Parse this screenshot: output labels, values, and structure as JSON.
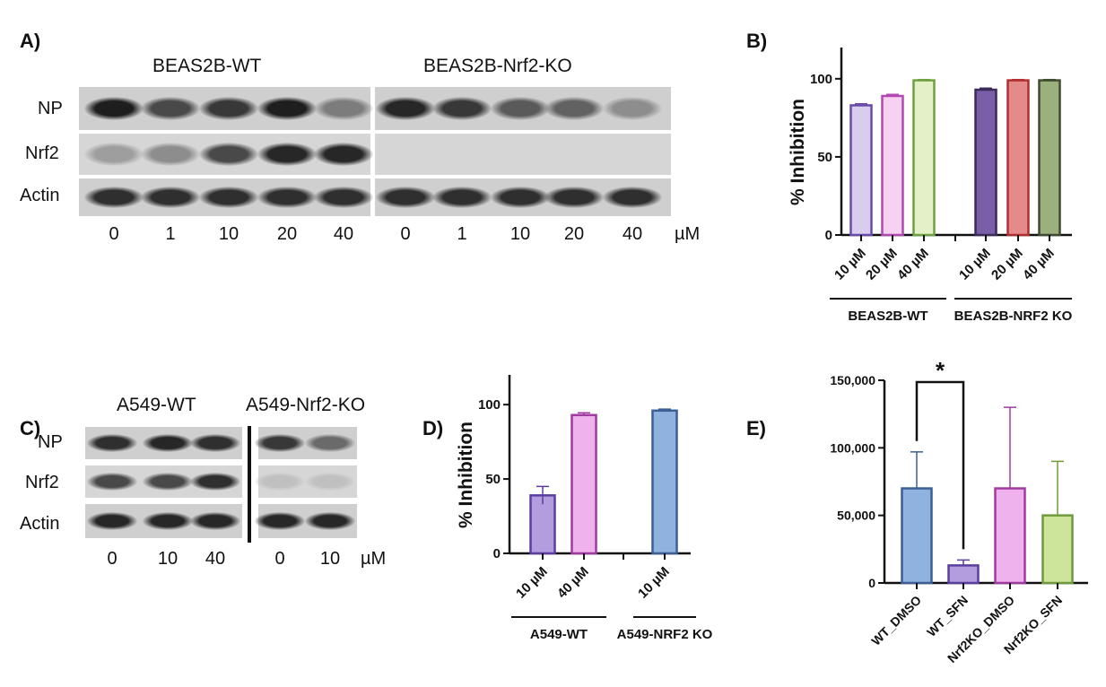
{
  "panels": {
    "a": "A)",
    "b": "B)",
    "c": "C)",
    "d": "D)",
    "e": "E)"
  },
  "blot_a": {
    "groups": [
      "BEAS2B-WT",
      "BEAS2B-Nrf2-KO"
    ],
    "rows": [
      "NP",
      "Nrf2",
      "Actin"
    ],
    "lanes": [
      "0",
      "1",
      "10",
      "20",
      "40",
      "0",
      "1",
      "10",
      "20",
      "40"
    ],
    "unit": "µM",
    "intensity": {
      "NP": [
        1.0,
        0.75,
        0.85,
        1.0,
        0.45,
        0.95,
        0.85,
        0.65,
        0.6,
        0.35
      ],
      "Nrf2": [
        0.25,
        0.35,
        0.75,
        0.95,
        0.95,
        0,
        0,
        0,
        0,
        0
      ],
      "Actin": [
        0.9,
        0.9,
        0.9,
        0.9,
        0.9,
        0.9,
        0.9,
        0.9,
        0.9,
        0.9
      ]
    }
  },
  "blot_c": {
    "groups": [
      "A549-WT",
      "A549-Nrf2-KO"
    ],
    "rows": [
      "NP",
      "Nrf2",
      "Actin"
    ],
    "lanes": [
      "0",
      "10",
      "40",
      "0",
      "10"
    ],
    "unit": "µM",
    "intensity": {
      "NP": [
        0.9,
        0.95,
        0.9,
        0.85,
        0.55
      ],
      "Nrf2": [
        0.75,
        0.75,
        0.9,
        0.05,
        0.05
      ],
      "Actin": [
        0.95,
        0.95,
        0.95,
        0.95,
        0.95
      ]
    }
  },
  "chart_data": [
    {
      "id": "B",
      "type": "bar",
      "ylabel": "% Inhibition",
      "ylim": [
        0,
        120
      ],
      "yticks": [
        "0",
        "50",
        "100"
      ],
      "ytick_values": [
        0,
        50,
        100
      ],
      "categories": [
        "10 µM",
        "20 µM",
        "40 µM",
        "10 µM",
        "20 µM",
        "40 µM"
      ],
      "values": [
        83,
        89,
        99,
        93,
        99,
        99
      ],
      "errors": [
        1,
        1,
        0.5,
        1,
        0.5,
        0.5
      ],
      "groups": [
        {
          "label": "BEAS2B-WT",
          "members": [
            0,
            1,
            2
          ]
        },
        {
          "label": "BEAS2B-NRF2 KO",
          "members": [
            3,
            4,
            5
          ]
        }
      ],
      "fills": [
        "#d9cdef",
        "#f6d1f2",
        "#e4f0c8",
        "#7a5fa8",
        "#e58a8a",
        "#9cb07e"
      ],
      "strokes": [
        "#6a4aa8",
        "#b04ab0",
        "#6fa040",
        "#3b2a5a",
        "#b03030",
        "#3f4a30"
      ]
    },
    {
      "id": "D",
      "type": "bar",
      "ylabel": "% Inhibition",
      "ylim": [
        0,
        120
      ],
      "yticks": [
        "0",
        "50",
        "100"
      ],
      "ytick_values": [
        0,
        50,
        100
      ],
      "categories": [
        "10 µM",
        "40 µM",
        "10 µM"
      ],
      "values": [
        39,
        93,
        96
      ],
      "errors": [
        6,
        1.5,
        1
      ],
      "groups": [
        {
          "label": "A549-WT",
          "members": [
            0,
            1
          ]
        },
        {
          "label": "A549-NRF2 KO",
          "members": [
            2
          ]
        }
      ],
      "fills": [
        "#b39ddf",
        "#f0b2ec",
        "#8fb2df"
      ],
      "strokes": [
        "#5b3e9e",
        "#a03aa0",
        "#3b5f95"
      ]
    },
    {
      "id": "E",
      "type": "bar",
      "ylabel": "",
      "ylim": [
        0,
        150000
      ],
      "yticks": [
        "0",
        "50,000",
        "100,000",
        "150,000"
      ],
      "ytick_values": [
        0,
        50000,
        100000,
        150000
      ],
      "categories": [
        "WT_DMSO",
        "WT_SFN",
        "Nrf2KO_DMSO",
        "Nrf2KO_SFN"
      ],
      "values": [
        70000,
        13000,
        70000,
        50000
      ],
      "errors": [
        27000,
        4000,
        60000,
        40000
      ],
      "significance": {
        "from": 0,
        "to": 1,
        "label": "*"
      },
      "fills": [
        "#8fb2df",
        "#b39ddf",
        "#f0b2ec",
        "#cde59a"
      ],
      "strokes": [
        "#3b5f95",
        "#5b3e9e",
        "#a03aa0",
        "#6f9a3a"
      ]
    }
  ]
}
